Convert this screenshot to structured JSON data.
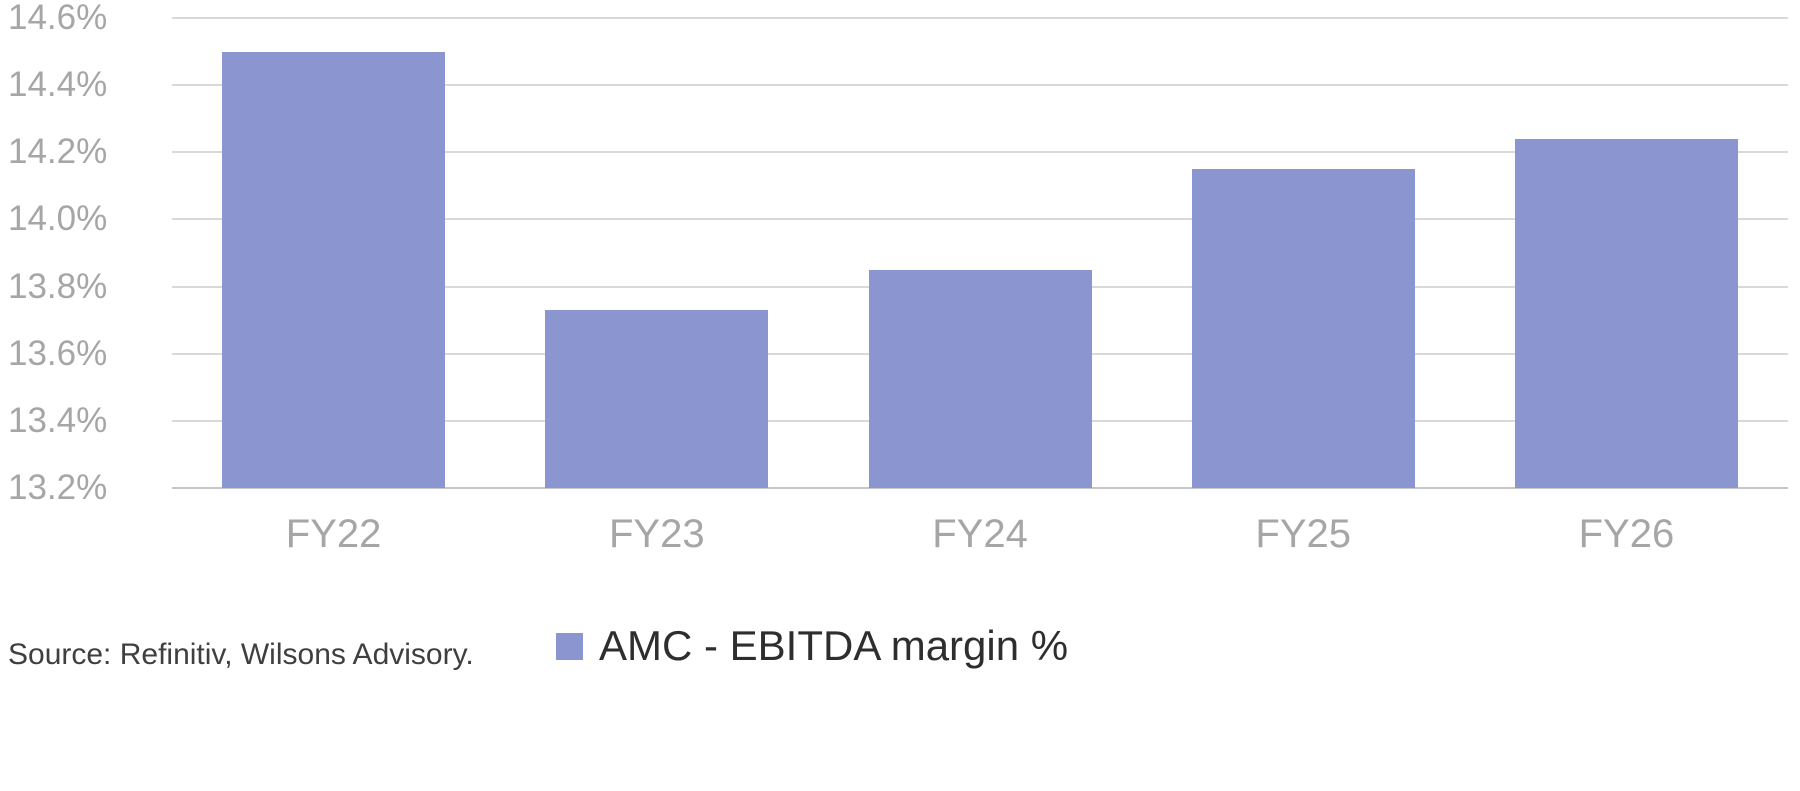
{
  "chart_data": {
    "type": "bar",
    "title": "",
    "categories": [
      "FY22",
      "FY23",
      "FY24",
      "FY25",
      "FY26"
    ],
    "series": [
      {
        "name": "AMC - EBITDA margin %",
        "values": [
          14.5,
          13.73,
          13.85,
          14.15,
          14.24
        ]
      }
    ],
    "xlabel": "",
    "ylabel": "",
    "ylim": [
      13.2,
      14.6
    ],
    "ytick_values": [
      13.2,
      13.4,
      13.6,
      13.8,
      14.0,
      14.2,
      14.4,
      14.6
    ],
    "ytick_labels": [
      "13.2%",
      "13.4%",
      "13.6%",
      "13.8%",
      "14.0%",
      "14.2%",
      "14.4%",
      "14.6%"
    ],
    "grid": true,
    "legend_position": "bottom",
    "colors": {
      "bar": "#8b95d0",
      "gridline": "#d9d9d9",
      "baseline": "#c6c6c6",
      "axis_text": "#a6a6a6",
      "legend_text": "#2e2e2e",
      "source_text": "#3f3f3f"
    }
  },
  "legend": {
    "label": "AMC - EBITDA margin %"
  },
  "footer": {
    "source": "Source: Refinitiv, Wilsons Advisory."
  }
}
